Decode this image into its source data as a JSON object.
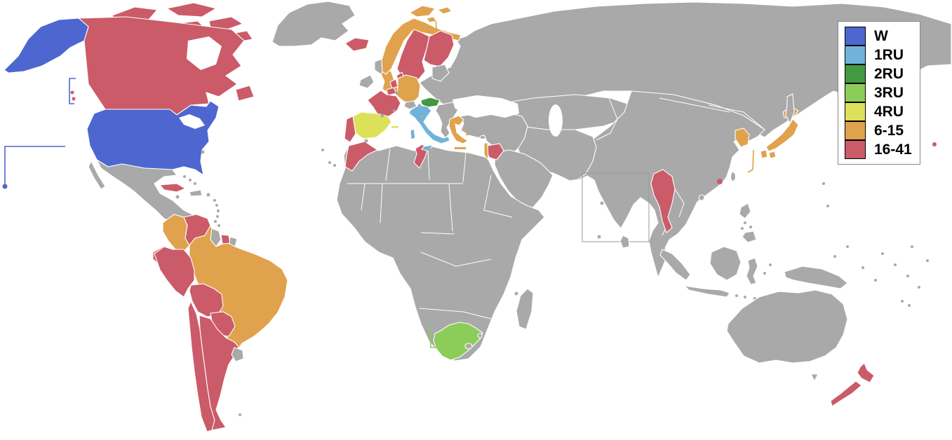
{
  "legend": {
    "entries": [
      {
        "category": "W",
        "label": "W"
      },
      {
        "category": "1RU",
        "label": "1RU"
      },
      {
        "category": "2RU",
        "label": "2RU"
      },
      {
        "category": "3RU",
        "label": "3RU"
      },
      {
        "category": "4RU",
        "label": "4RU"
      },
      {
        "category": "6-15",
        "label": "6-15"
      },
      {
        "category": "16-41",
        "label": "16-41"
      }
    ]
  },
  "palette": {
    "categories": {
      "W": "#4e66cf",
      "1RU": "#6fb3da",
      "2RU": "#43993f",
      "3RU": "#8ccd5a",
      "4RU": "#dde15a",
      "6-15": "#e0a24d",
      "16-41": "#cb5b68"
    },
    "land": "#a9a9a9",
    "sea": "#ffffff",
    "border": "#ffffff",
    "inset_box": "#9a9a9a"
  },
  "regions": {
    "united-states": "W",
    "italy": "1RU",
    "austria": "2RU",
    "south-africa": "3RU",
    "spain": "4RU",
    "norway": "6-15",
    "england": "6-15",
    "germany": "6-15",
    "greece": "6-15",
    "israel": "6-15",
    "colombia": "6-15",
    "brazil": "6-15",
    "japan": "6-15",
    "south-korea": "6-15",
    "canada": "16-41",
    "iceland": "16-41",
    "sweden": "16-41",
    "finland": "16-41",
    "denmark": "16-41",
    "netherlands": "16-41",
    "belgium": "16-41",
    "france": "16-41",
    "portugal": "16-41",
    "morocco": "16-41",
    "tunisia": "16-41",
    "jordan": "16-41",
    "cuba": "16-41",
    "venezuela": "16-41",
    "suriname": "16-41",
    "ecuador": "16-41",
    "peru": "16-41",
    "bolivia": "16-41",
    "paraguay": "16-41",
    "chile": "16-41",
    "argentina": "16-41",
    "myanmar": "16-41",
    "hong-kong": "16-41",
    "east-pacific-islet": "16-41",
    "new-zealand": "16-41"
  }
}
